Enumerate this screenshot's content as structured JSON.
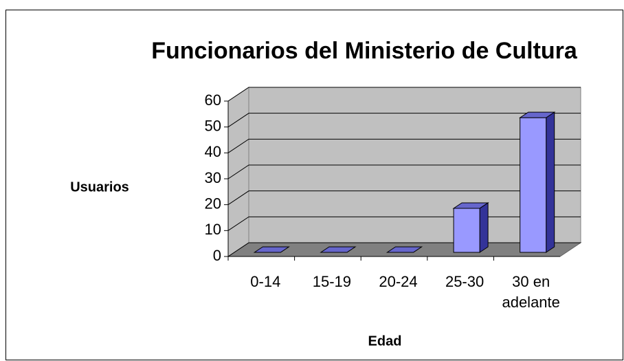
{
  "chart_data": {
    "type": "bar3d",
    "title": "Funcionarios del Ministerio de Cultura",
    "x_label": "Edad",
    "y_label": "Usuarios",
    "categories": [
      "0-14",
      "15-19",
      "20-24",
      "25-30",
      "30 en adelante"
    ],
    "values": [
      0,
      0,
      0,
      17,
      52
    ],
    "color": "#9999ff",
    "ylim": [
      0,
      60
    ],
    "yticks": [
      0,
      10,
      20,
      30,
      40,
      50,
      60
    ],
    "grid": true
  }
}
